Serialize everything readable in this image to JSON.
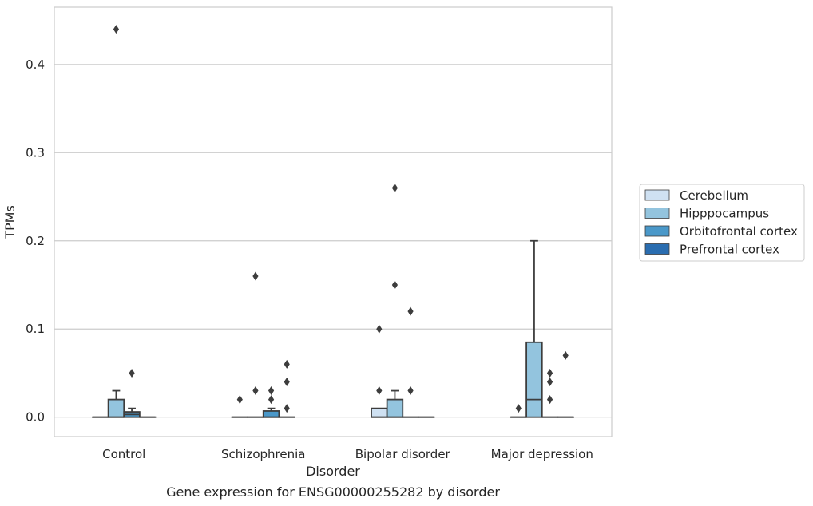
{
  "chart_data": {
    "type": "box",
    "title": "",
    "caption": "Gene expression for ENSG00000255282 by disorder",
    "xlabel": "Disorder",
    "ylabel": "TPMs",
    "ylim": [
      -0.022,
      0.465
    ],
    "yticks": [
      0.0,
      0.1,
      0.2,
      0.3,
      0.4
    ],
    "ytick_labels": [
      "0.0",
      "0.1",
      "0.2",
      "0.3",
      "0.4"
    ],
    "grid": "horizontal",
    "legend_position": "right",
    "categories": [
      "Control",
      "Schizophrenia",
      "Bipolar disorder",
      "Major depression"
    ],
    "series": [
      {
        "name": "Cerebellum",
        "color": "#cfe1f2",
        "boxes": [
          {
            "q1": 0,
            "median": 0,
            "q3": 0,
            "whisker_low": 0,
            "whisker_high": 0,
            "outliers": []
          },
          {
            "q1": 0,
            "median": 0,
            "q3": 0,
            "whisker_low": 0,
            "whisker_high": 0,
            "outliers": [
              0.02
            ]
          },
          {
            "q1": 0,
            "median": 0,
            "q3": 0.01,
            "whisker_low": 0,
            "whisker_high": 0.01,
            "outliers": [
              0.03,
              0.1
            ]
          },
          {
            "q1": 0,
            "median": 0,
            "q3": 0,
            "whisker_low": 0,
            "whisker_high": 0,
            "outliers": [
              0.01
            ]
          }
        ]
      },
      {
        "name": "Hipppocampus",
        "color": "#93c4de",
        "boxes": [
          {
            "q1": 0,
            "median": 0,
            "q3": 0.02,
            "whisker_low": 0,
            "whisker_high": 0.03,
            "outliers": [
              0.44
            ]
          },
          {
            "q1": 0,
            "median": 0,
            "q3": 0,
            "whisker_low": 0,
            "whisker_high": 0,
            "outliers": [
              0.03,
              0.16
            ]
          },
          {
            "q1": 0,
            "median": 0,
            "q3": 0.02,
            "whisker_low": 0,
            "whisker_high": 0.03,
            "outliers": [
              0.15,
              0.26
            ]
          },
          {
            "q1": 0,
            "median": 0.02,
            "q3": 0.085,
            "whisker_low": 0,
            "whisker_high": 0.2,
            "outliers": []
          }
        ]
      },
      {
        "name": "Orbitofrontal cortex",
        "color": "#4a98c9",
        "boxes": [
          {
            "q1": 0,
            "median": 0.003,
            "q3": 0.006,
            "whisker_low": 0,
            "whisker_high": 0.01,
            "outliers": [
              0.05
            ]
          },
          {
            "q1": 0,
            "median": 0,
            "q3": 0.007,
            "whisker_low": 0,
            "whisker_high": 0.01,
            "outliers": [
              0.02,
              0.03
            ]
          },
          {
            "q1": 0,
            "median": 0,
            "q3": 0,
            "whisker_low": 0,
            "whisker_high": 0,
            "outliers": [
              0.03,
              0.12
            ]
          },
          {
            "q1": 0,
            "median": 0,
            "q3": 0,
            "whisker_low": 0,
            "whisker_high": 0,
            "outliers": [
              0.02,
              0.04,
              0.05
            ]
          }
        ]
      },
      {
        "name": "Prefrontal cortex",
        "color": "#2a6db0",
        "boxes": [
          {
            "q1": 0,
            "median": 0,
            "q3": 0,
            "whisker_low": 0,
            "whisker_high": 0,
            "outliers": []
          },
          {
            "q1": 0,
            "median": 0,
            "q3": 0,
            "whisker_low": 0,
            "whisker_high": 0,
            "outliers": [
              0.01,
              0.04,
              0.06
            ]
          },
          {
            "q1": 0,
            "median": 0,
            "q3": 0,
            "whisker_low": 0,
            "whisker_high": 0,
            "outliers": []
          },
          {
            "q1": 0,
            "median": 0,
            "q3": 0,
            "whisker_low": 0,
            "whisker_high": 0,
            "outliers": [
              0.07
            ]
          }
        ]
      }
    ]
  }
}
